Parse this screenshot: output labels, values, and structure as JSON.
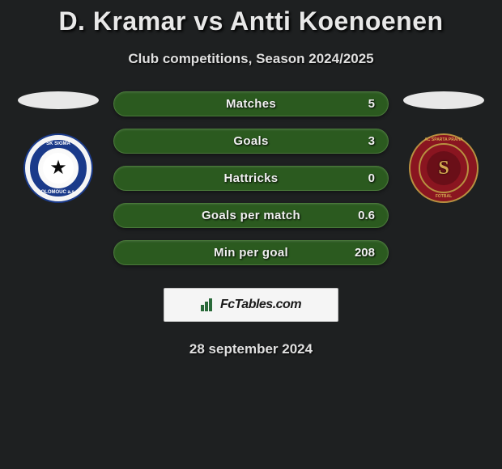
{
  "title": "D. Kramar vs Antti Koenoenen",
  "subtitle": "Club competitions, Season 2024/2025",
  "date": "28 september 2024",
  "brand": "FcTables.com",
  "stats": {
    "matches": {
      "label": "Matches",
      "value": "5"
    },
    "goals": {
      "label": "Goals",
      "value": "3"
    },
    "hattricks": {
      "label": "Hattricks",
      "value": "0"
    },
    "gpm": {
      "label": "Goals per match",
      "value": "0.6"
    },
    "mpg": {
      "label": "Min per goal",
      "value": "208"
    }
  },
  "left_club": {
    "ring_text_top": "SK SIGMA",
    "ring_text_bottom": "OLOMOUC a.s."
  },
  "right_club": {
    "ring_text_top": "AC SPARTA PRAHA",
    "ring_text_bottom": "FOTBAL",
    "letter": "S"
  },
  "colors": {
    "background": "#1e2021",
    "bar_bg": "#2b5a1f",
    "bar_border": "#4a7a3a",
    "text": "#e8e8e8",
    "sigma_blue": "#1a3a8a",
    "sparta_red": "#8a1520",
    "sparta_gold": "#d4a850"
  }
}
